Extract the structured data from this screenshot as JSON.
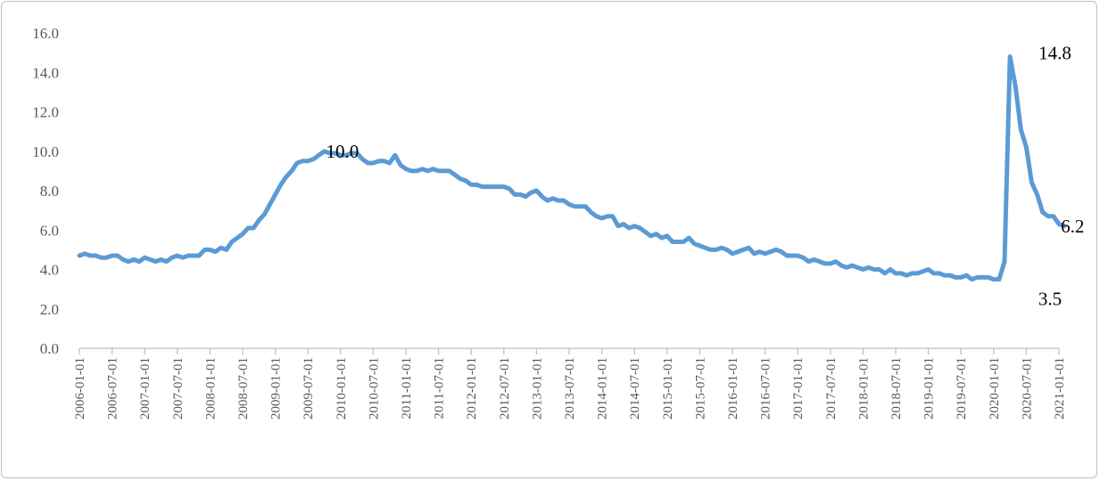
{
  "chart_data": {
    "type": "line",
    "title": "",
    "xlabel": "",
    "ylabel": "",
    "ylim": [
      0,
      16
    ],
    "y_ticks": [
      "0.0",
      "2.0",
      "4.0",
      "6.0",
      "8.0",
      "10.0",
      "12.0",
      "14.0",
      "16.0"
    ],
    "x_tick_labels": [
      "2006-01-01",
      "2006-07-01",
      "2007-01-01",
      "2007-07-01",
      "2008-01-01",
      "2008-07-01",
      "2009-01-01",
      "2009-07-01",
      "2010-01-01",
      "2010-07-01",
      "2011-01-01",
      "2011-07-01",
      "2012-01-01",
      "2012-07-01",
      "2013-01-01",
      "2013-07-01",
      "2014-01-01",
      "2014-07-01",
      "2015-01-01",
      "2015-07-01",
      "2016-01-01",
      "2016-07-01",
      "2017-01-01",
      "2017-07-01",
      "2018-01-01",
      "2018-07-01",
      "2019-01-01",
      "2019-07-01",
      "2020-01-01",
      "2020-07-01",
      "2021-01-01"
    ],
    "grid": false,
    "legend": "none",
    "series_color": "#5B9BD5",
    "series": [
      {
        "x_start": "2006-01-01",
        "frequency": "monthly",
        "values": [
          4.7,
          4.8,
          4.7,
          4.7,
          4.6,
          4.6,
          4.7,
          4.7,
          4.5,
          4.4,
          4.5,
          4.4,
          4.6,
          4.5,
          4.4,
          4.5,
          4.4,
          4.6,
          4.7,
          4.6,
          4.7,
          4.7,
          4.7,
          5.0,
          5.0,
          4.9,
          5.1,
          5.0,
          5.4,
          5.6,
          5.8,
          6.1,
          6.1,
          6.5,
          6.8,
          7.3,
          7.8,
          8.3,
          8.7,
          9.0,
          9.4,
          9.5,
          9.5,
          9.6,
          9.8,
          10.0,
          9.9,
          9.9,
          9.8,
          9.8,
          9.9,
          9.9,
          9.6,
          9.4,
          9.4,
          9.5,
          9.5,
          9.4,
          9.8,
          9.3,
          9.1,
          9.0,
          9.0,
          9.1,
          9.0,
          9.1,
          9.0,
          9.0,
          9.0,
          8.8,
          8.6,
          8.5,
          8.3,
          8.3,
          8.2,
          8.2,
          8.2,
          8.2,
          8.2,
          8.1,
          7.8,
          7.8,
          7.7,
          7.9,
          8.0,
          7.7,
          7.5,
          7.6,
          7.5,
          7.5,
          7.3,
          7.2,
          7.2,
          7.2,
          6.9,
          6.7,
          6.6,
          6.7,
          6.7,
          6.2,
          6.3,
          6.1,
          6.2,
          6.1,
          5.9,
          5.7,
          5.8,
          5.6,
          5.7,
          5.4,
          5.4,
          5.4,
          5.6,
          5.3,
          5.2,
          5.1,
          5.0,
          5.0,
          5.1,
          5.0,
          4.8,
          4.9,
          5.0,
          5.1,
          4.8,
          4.9,
          4.8,
          4.9,
          5.0,
          4.9,
          4.7,
          4.7,
          4.7,
          4.6,
          4.4,
          4.5,
          4.4,
          4.3,
          4.3,
          4.4,
          4.2,
          4.1,
          4.2,
          4.1,
          4.0,
          4.1,
          4.0,
          4.0,
          3.8,
          4.0,
          3.8,
          3.8,
          3.7,
          3.8,
          3.8,
          3.9,
          4.0,
          3.8,
          3.8,
          3.7,
          3.7,
          3.6,
          3.6,
          3.7,
          3.5,
          3.6,
          3.6,
          3.6,
          3.5,
          3.5,
          4.4,
          14.8,
          13.3,
          11.1,
          10.2,
          8.4,
          7.8,
          6.9,
          6.7,
          6.7,
          6.3,
          6.2
        ]
      }
    ],
    "annotations": [
      {
        "text": "10.0",
        "x": "2009-10-01",
        "y": 10.0
      },
      {
        "text": "14.8",
        "x": "2020-04-01",
        "y": 14.8
      },
      {
        "text": "3.5",
        "x": "2020-02-01",
        "y": 3.5
      },
      {
        "text": "6.2",
        "x": "2021-02-01",
        "y": 6.2
      }
    ]
  }
}
